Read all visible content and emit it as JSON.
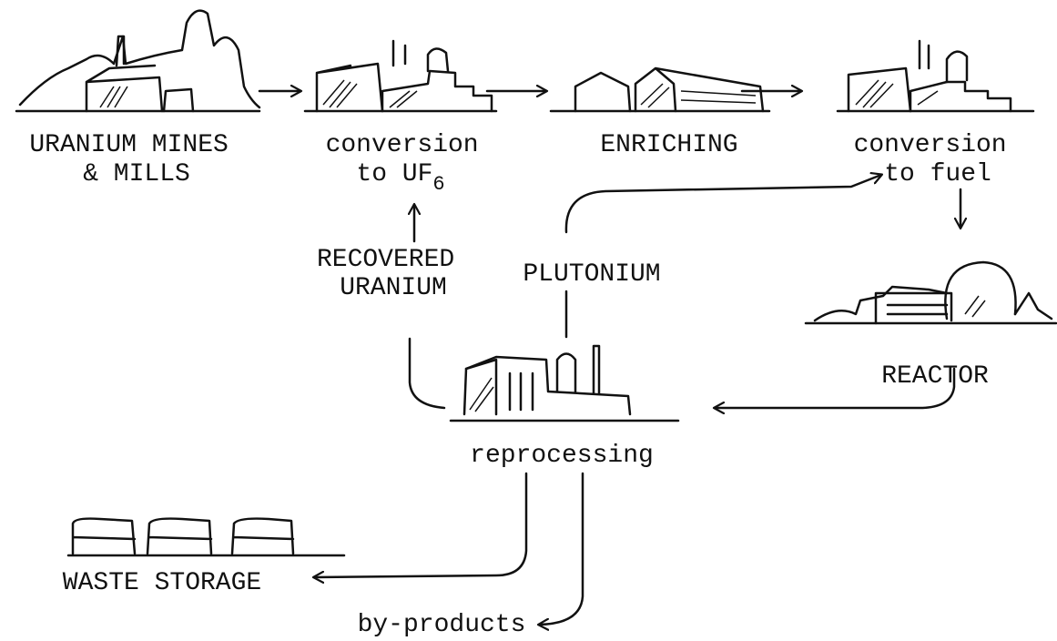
{
  "nodes": [
    {
      "lines": [
        "URANIUM MINES",
        "& MILLS"
      ]
    },
    {
      "lines": [
        "conversion",
        "to UF"
      ],
      "subscript": "6"
    },
    {
      "lines": [
        "ENRICHING"
      ]
    },
    {
      "lines": [
        "conversion",
        "to fuel"
      ]
    },
    {
      "lines": [
        "REACTOR"
      ]
    },
    {
      "lines": [
        "reprocessing"
      ]
    },
    {
      "lines": [
        "WASTE STORAGE"
      ]
    },
    {
      "lines": [
        "by-products"
      ]
    }
  ],
  "flows": [
    {
      "lines": [
        "RECOVERED",
        "URANIUM"
      ]
    },
    {
      "lines": [
        "PLUTONIUM"
      ]
    }
  ]
}
